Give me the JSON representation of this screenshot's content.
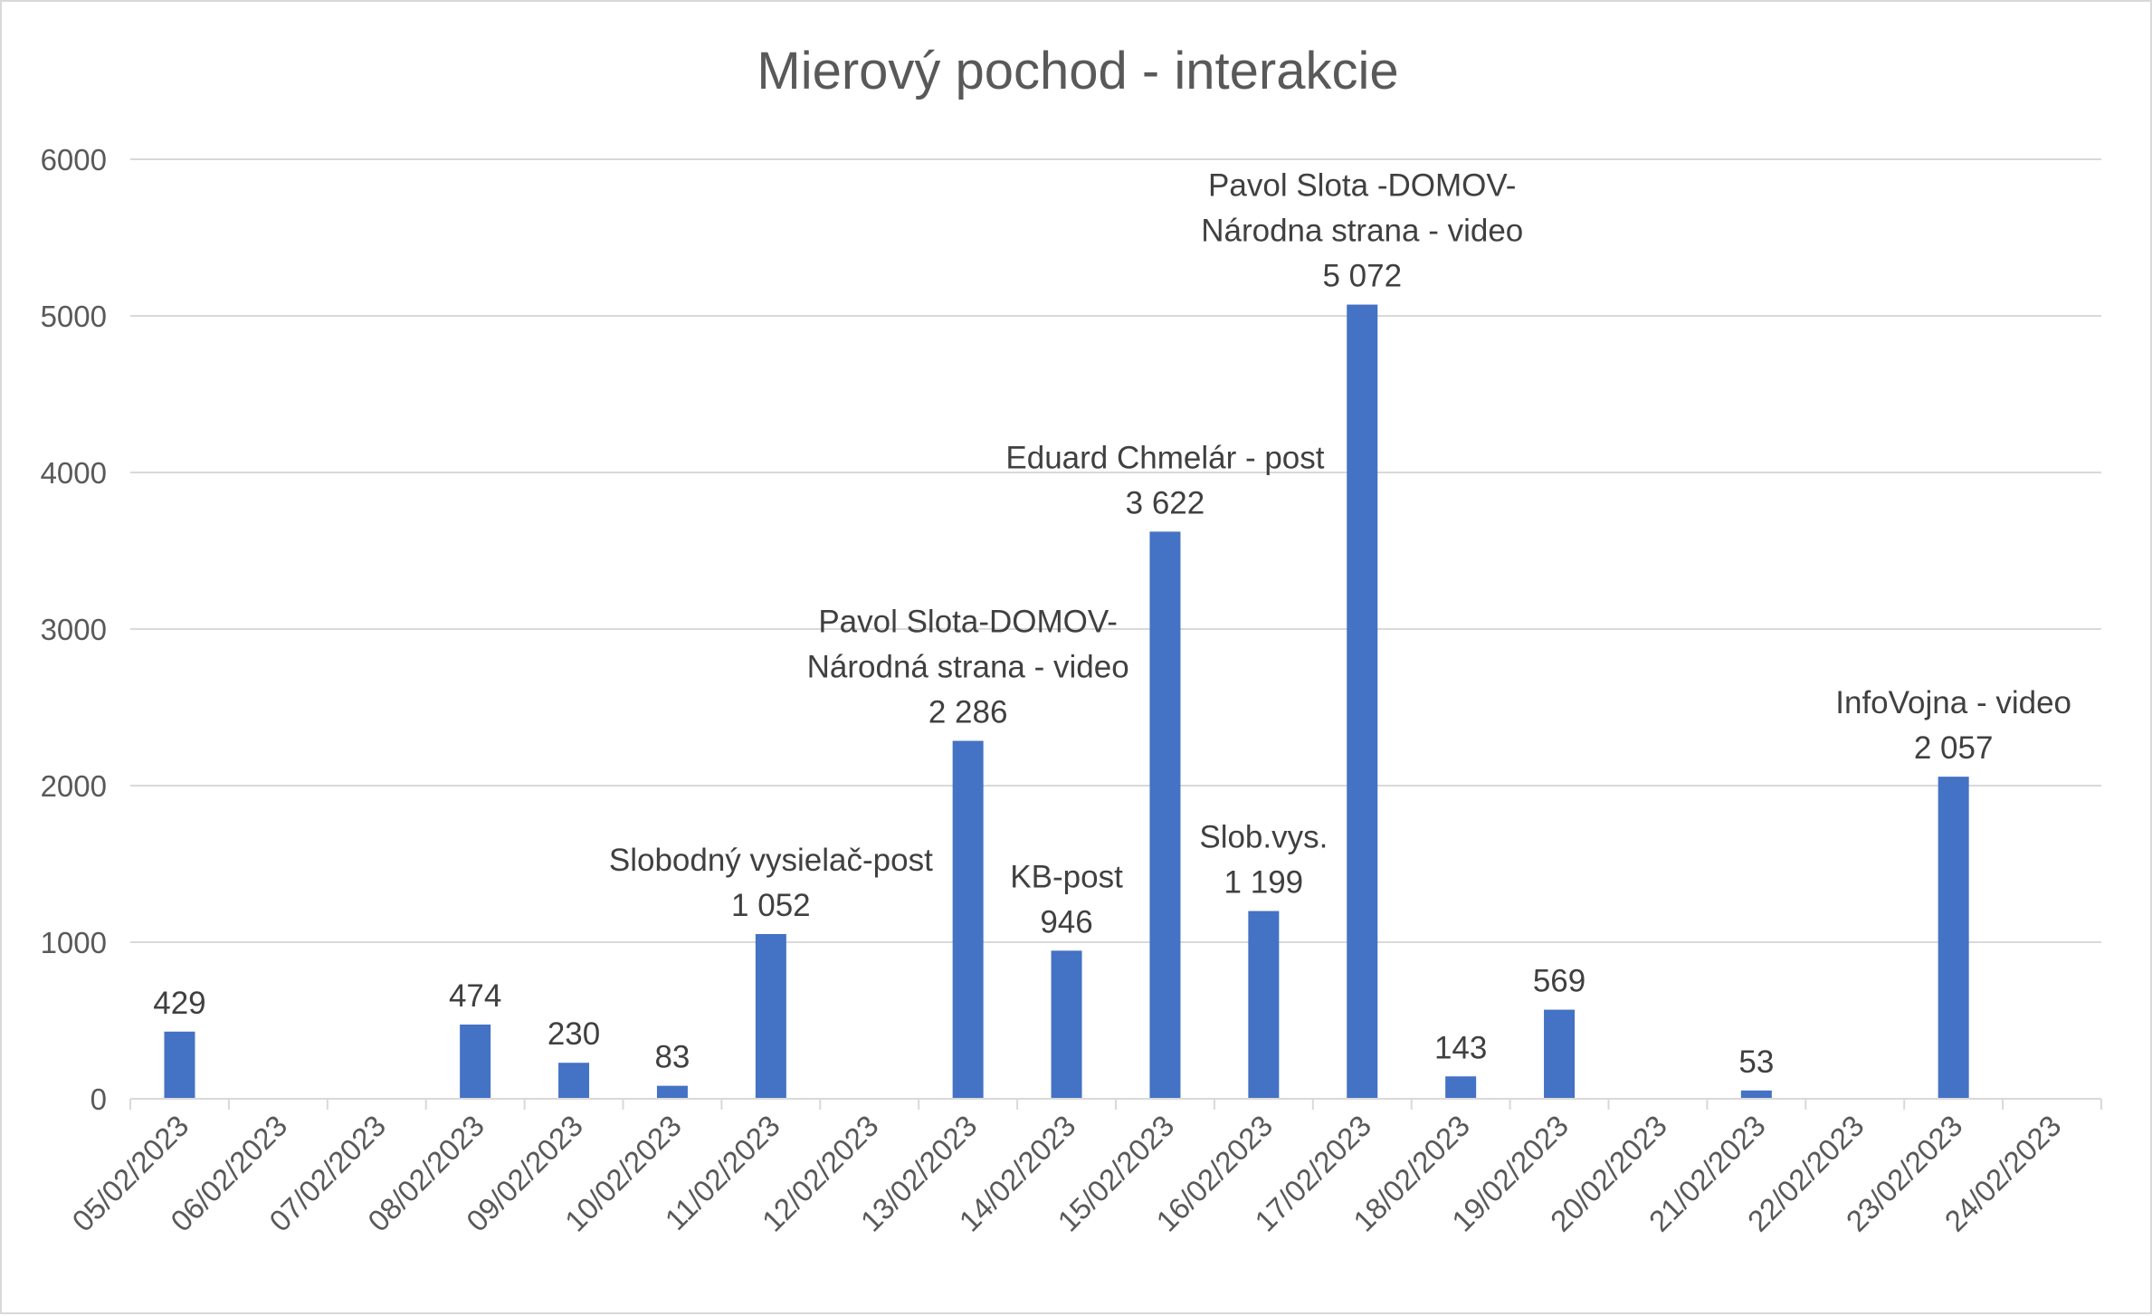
{
  "chart_data": {
    "type": "bar",
    "title": "Mierový pochod - interakcie",
    "xlabel": "",
    "ylabel": "",
    "ylim": [
      0,
      6000
    ],
    "yticks": [
      "0",
      "1000",
      "2000",
      "3000",
      "4000",
      "5000",
      "6000"
    ],
    "grid": true,
    "legend": "none",
    "bar_color": "#4472C4",
    "categories": [
      "05/02/2023",
      "06/02/2023",
      "07/02/2023",
      "08/02/2023",
      "09/02/2023",
      "10/02/2023",
      "11/02/2023",
      "12/02/2023",
      "13/02/2023",
      "14/02/2023",
      "15/02/2023",
      "16/02/2023",
      "17/02/2023",
      "18/02/2023",
      "19/02/2023",
      "20/02/2023",
      "21/02/2023",
      "22/02/2023",
      "23/02/2023",
      "24/02/2023"
    ],
    "values": [
      429,
      0,
      0,
      474,
      230,
      83,
      1052,
      0,
      2286,
      946,
      3622,
      1199,
      5072,
      143,
      569,
      0,
      53,
      0,
      2057,
      0
    ],
    "data_labels": [
      [
        "429"
      ],
      [],
      [],
      [
        "474"
      ],
      [
        "230"
      ],
      [
        "83"
      ],
      [
        "Slobodný vysielač-post",
        "1 052"
      ],
      [],
      [
        "Pavol Slota-DOMOV-",
        "Národná strana - video",
        "2 286"
      ],
      [
        "KB-post",
        "946"
      ],
      [
        "Eduard Chmelár - post",
        "3 622"
      ],
      [
        "Slob.vys.",
        "1 199"
      ],
      [
        "Pavol Slota -DOMOV-",
        "Národna strana - video",
        "5 072"
      ],
      [
        "143"
      ],
      [
        "569"
      ],
      [],
      [
        "53"
      ],
      [],
      [
        "InfoVojna - video",
        "2 057"
      ],
      []
    ]
  }
}
